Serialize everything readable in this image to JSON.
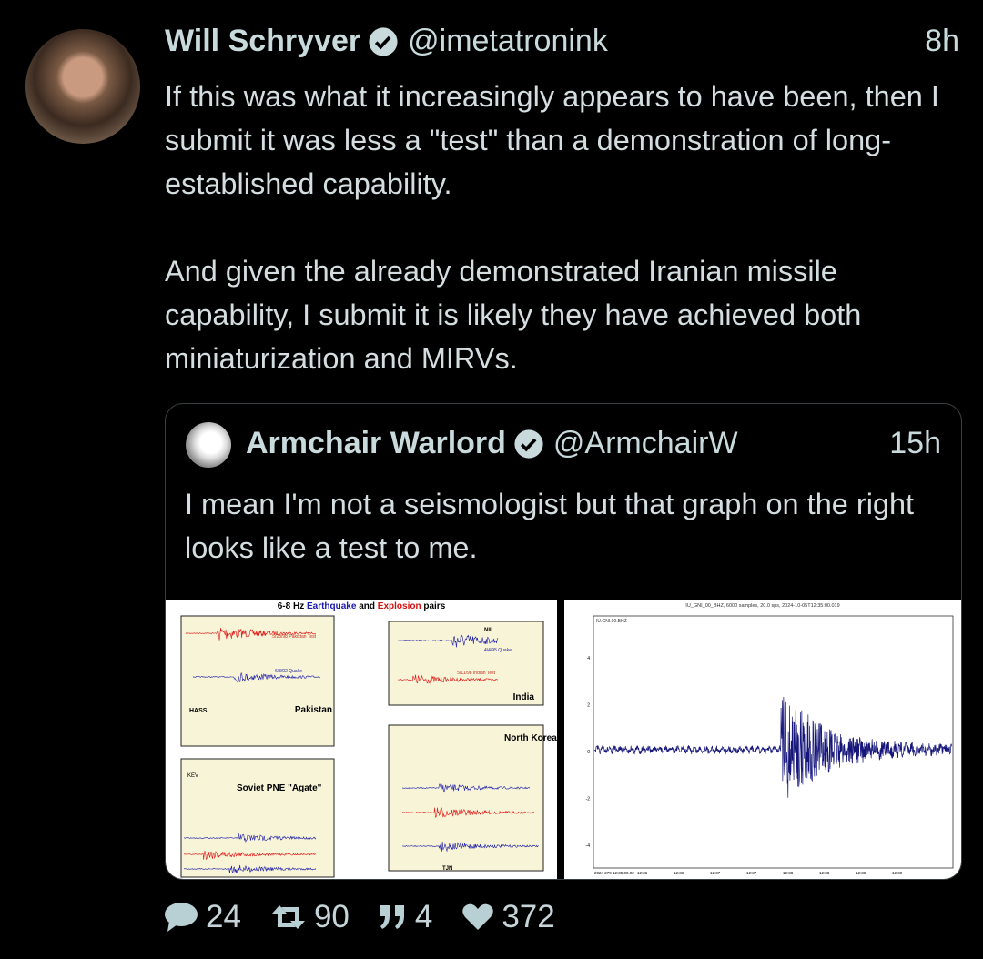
{
  "tweet": {
    "author_name": "Will Schryver",
    "author_handle": "@imetatronink",
    "time": "8h",
    "paragraphs": [
      "If this was what it increasingly appears to have been, then I submit it was less a \"test\" than a demonstration of long-established capability.",
      "And given the already demonstrated Iranian missile capability, I submit it is likely they have achieved both miniaturization and MIRVs."
    ],
    "verified": true
  },
  "quote": {
    "author_name": "Armchair Warlord",
    "author_handle": "@ArmchairW",
    "time": "15h",
    "text": "I mean I'm not a seismologist but that graph on the right looks like a test to me.",
    "verified": true,
    "images": {
      "left": {
        "title_prefix": "6-8 Hz ",
        "title_quake": "Earthquake",
        "title_and": " and ",
        "title_explosion": "Explosion",
        "title_suffix": " pairs",
        "panels": [
          "Pakistan",
          "India",
          "Soviet PNE \"Agate\"",
          "North Korea"
        ],
        "labels": [
          "5/28/98 Pakistan Test",
          "6/3/02 Quake",
          "4/4/95 Quake",
          "5/11/98 Indian Test",
          "HASS",
          "NIL",
          "KEV",
          "TJN"
        ]
      },
      "right": {
        "title": "IU_GNI_00_BHZ, 6000 samples, 20.0 sps, 2024-10-05T12:35:00.019",
        "station": "IU.GNI.00.BHZ",
        "y_ticks": [
          "4",
          "2",
          "0",
          "-2",
          "-4"
        ],
        "x_ticks": [
          "2024 279 12:35:00.02",
          "12:36",
          "12:36",
          "12:37",
          "12:37",
          "12:38",
          "12:38",
          "12:39",
          "12:39"
        ]
      }
    }
  },
  "actions": {
    "replies": "24",
    "retweets": "90",
    "quotes": "4",
    "likes": "372"
  },
  "colors": {
    "background": "#000000",
    "text": "#d4dde0",
    "icon": "#b8cfd3",
    "quake": "#1a1aa8",
    "explosion": "#e01010"
  }
}
